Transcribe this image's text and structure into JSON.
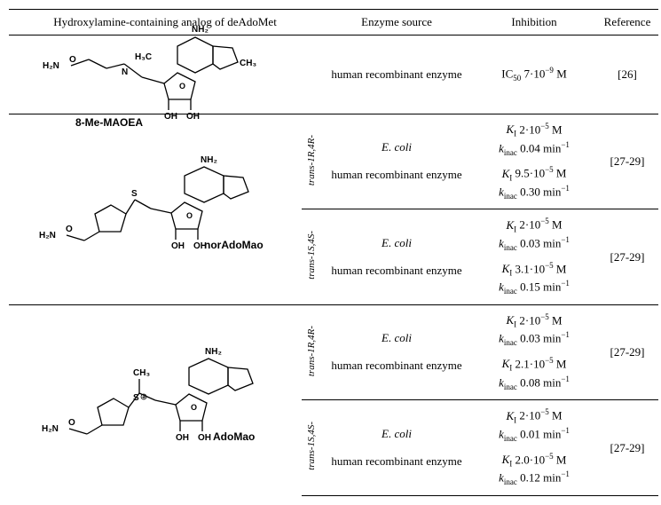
{
  "header": {
    "col1": "Hydroxylamine-containing analog of deAdoMet",
    "col2": "Enzyme source",
    "col3": "Inhibition",
    "col4": "Reference"
  },
  "rows": [
    {
      "compound": "8-Me-MAOEA",
      "svg": "8me",
      "entries": [
        {
          "stereo": "",
          "enzyme_a": "human recombinant enzyme",
          "enzyme_b": "",
          "inhib_a_line1": "IC₅₀ 7·10⁻⁹ M",
          "inhib_a_line2": "",
          "inhib_b_line1": "",
          "inhib_b_line2": "",
          "ref": "[26]"
        }
      ]
    },
    {
      "compound": "norAdoMao",
      "svg": "nor",
      "entries": [
        {
          "stereo": "trans-1R,4R-",
          "enzyme_a": "E. coli",
          "enzyme_b": "human recombinant enzyme",
          "inhib_a_line1": "Kᵢ 2·10⁻⁵ M",
          "inhib_a_line2": "kᵢₙₐc 0.04 min⁻¹",
          "inhib_b_line1": "Kᵢ 9.5·10⁻⁵ M",
          "inhib_b_line2": "kᵢₙₐc 0.30 min⁻¹",
          "ref": "[27-29]"
        },
        {
          "stereo": "trans-1S,4S-",
          "enzyme_a": "E. coli",
          "enzyme_b": "human recombinant enzyme",
          "inhib_a_line1": "Kᵢ 2·10⁻⁵ M",
          "inhib_a_line2": "kᵢₙₐc 0.03 min⁻¹",
          "inhib_b_line1": "Kᵢ 3.1·10⁻⁵ M",
          "inhib_b_line2": "kᵢₙₐc 0.15 min⁻¹",
          "ref": "[27-29]"
        }
      ]
    },
    {
      "compound": "AdoMao",
      "svg": "ado",
      "entries": [
        {
          "stereo": "trans-1R,4R-",
          "enzyme_a": "E. coli",
          "enzyme_b": "human recombinant enzyme",
          "inhib_a_line1": "Kᵢ 2·10⁻⁵ M",
          "inhib_a_line2": "kᵢₙₐc 0.03 min⁻¹",
          "inhib_b_line1": "Kᵢ 2.1·10⁻⁵ M",
          "inhib_b_line2": "kᵢₙₐc 0.08 min⁻¹",
          "ref": "[27-29]"
        },
        {
          "stereo": "trans-1S,4S-",
          "enzyme_a": "E. coli",
          "enzyme_b": "human recombinant enzyme",
          "inhib_a_line1": "Kᵢ 2·10⁻⁵ M",
          "inhib_a_line2": "kᵢₙₐc 0.01 min⁻¹",
          "inhib_b_line1": "Kᵢ 2.0·10⁻⁵ M",
          "inhib_b_line2": "kᵢₙₐc 0.12 min⁻¹",
          "ref": "[27-29]"
        }
      ]
    }
  ],
  "styling": {
    "border_color": "#000000",
    "background": "#ffffff",
    "font": "Times New Roman",
    "font_size_body": 13,
    "font_size_stereo": 11
  }
}
